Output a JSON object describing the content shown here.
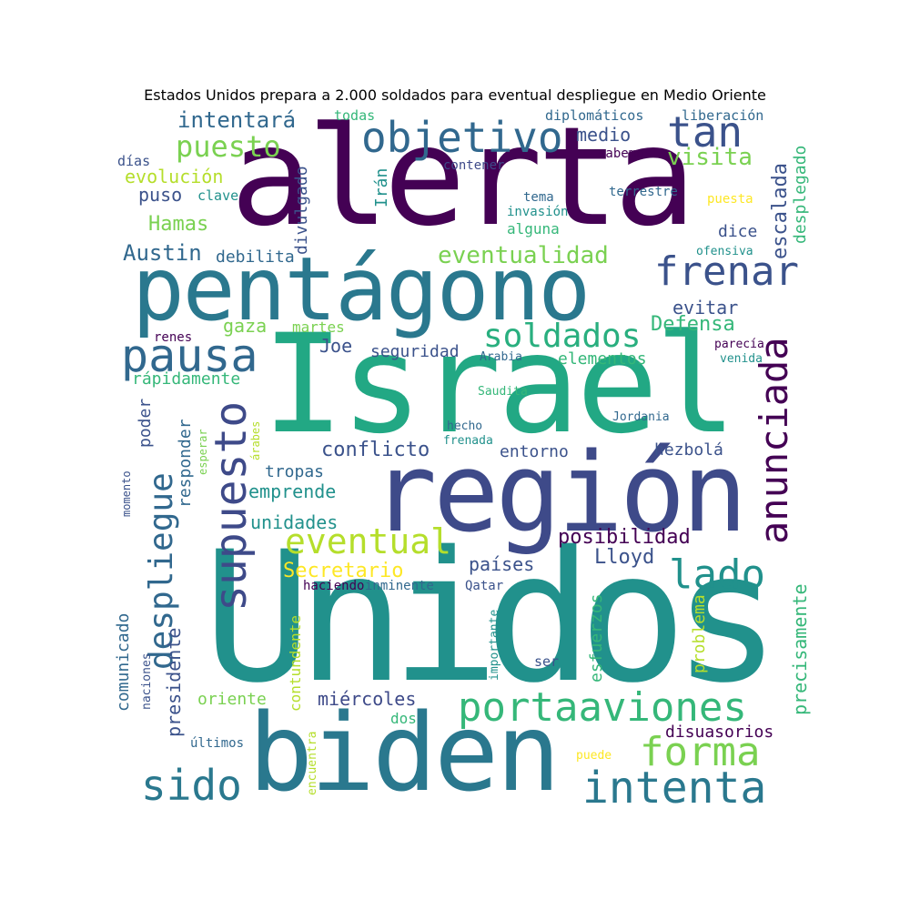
{
  "title": "Estados Unidos prepara a 2.000 soldados para eventual despliegue en Medio Oriente",
  "colors": {
    "dark_purple": "#440154",
    "indigo": "#3b528b",
    "blue": "#31688e",
    "teal": "#21918c",
    "green": "#5ec962",
    "lime": "#b5de2b",
    "yellow": "#fde725"
  },
  "words": {
    "alerta": "alerta",
    "pentagono": "pentágono",
    "israel": "Israel",
    "region": "región",
    "unidos": "Unidos",
    "biden": "biden",
    "objetivo": "objetivo",
    "tan": "tan",
    "puesto": "puesto",
    "intentara": "intentará",
    "frenar": "frenar",
    "pausa": "pausa",
    "soldados": "soldados",
    "anunciada": "anunciada",
    "supuesto": "supuesto",
    "despliegue": "despliegue",
    "portaaviones": "portaaviones",
    "forma": "forma",
    "intenta": "intenta",
    "sido": "sido",
    "lado": "lado",
    "eventual": "eventual",
    "eventualidad": "eventualidad",
    "visita": "visita",
    "escalada": "escalada",
    "desplegado": "desplegado",
    "medio": "medio",
    "diplomaticos": "diplomáticos",
    "liberacion": "liberación",
    "todas": "todas",
    "dias": "días",
    "evolucion": "evolución",
    "contener": "contener",
    "sabemos": "sabemos",
    "terrestre": "terrestre",
    "puesta": "puesta",
    "puso": "puso",
    "clave": "clave",
    "iran": "Irán",
    "tema": "tema",
    "invasion": "invasión",
    "alguna": "alguna",
    "divulgado": "divulgado",
    "hamas": "Hamas",
    "dice": "dice",
    "austin": "Austin",
    "debilita": "debilita",
    "ofensiva": "ofensiva",
    "evitar": "evitar",
    "defensa": "Defensa",
    "gaza": "gaza",
    "martes": "martes",
    "joe": "Joe",
    "seguridad": "seguridad",
    "renes": "renes",
    "arabia": "Arabia",
    "elementos": "elementos",
    "parecia": "parecía",
    "venida": "venida",
    "rapidamente": "rápidamente",
    "saudita": "Saudita",
    "poder": "poder",
    "responder": "responder",
    "esperar": "esperar",
    "arabes": "árabes",
    "jordania": "Jordania",
    "hecho": "hecho",
    "frenada": "frenada",
    "conflicto": "conflicto",
    "entorno": "entorno",
    "hezbola": "hezbolá",
    "tropas": "tropas",
    "emprende": "emprende",
    "unidades": "unidades",
    "momento": "momento",
    "posibilidad": "posibilidad",
    "lloyd": "Lloyd",
    "secretario": "Secretario",
    "paises": "países",
    "haciendo": "haciendo",
    "inminente": "inminente",
    "qatar": "Qatar",
    "precisamente": "precisamente",
    "esfuerzos": "esfuerzos",
    "problema": "problema",
    "importante": "importante",
    "ser": "ser",
    "comunicado": "comunicado",
    "presidente": "presidente",
    "contundente": "contundente",
    "naciones": "naciones",
    "oriente": "oriente",
    "miercoles": "miércoles",
    "dos": "dos",
    "disuasorios": "disuasorios",
    "ultimos": "últimos",
    "encuentra": "encuentra",
    "puede": "puede"
  }
}
